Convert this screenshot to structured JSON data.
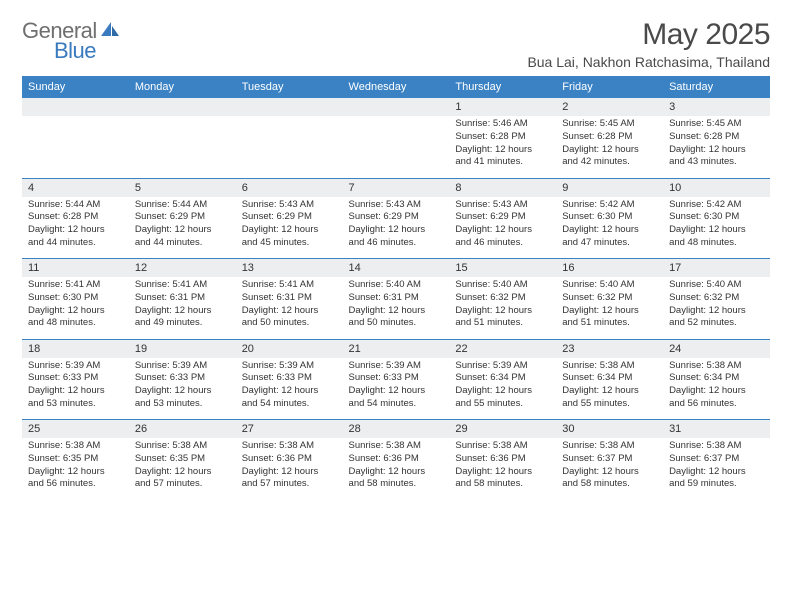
{
  "brand": {
    "part1": "General",
    "part2": "Blue"
  },
  "title": "May 2025",
  "location": "Bua Lai, Nakhon Ratchasima, Thailand",
  "colors": {
    "header_bg": "#3a82c4",
    "row_border": "#3a82c4",
    "daynum_bg": "#eceeef",
    "text": "#333333",
    "logo_gray": "#6f6f6f",
    "logo_blue": "#3a7bbf"
  },
  "weekdays": [
    "Sunday",
    "Monday",
    "Tuesday",
    "Wednesday",
    "Thursday",
    "Friday",
    "Saturday"
  ],
  "weeks": [
    [
      null,
      null,
      null,
      null,
      {
        "n": "1",
        "sr": "5:46 AM",
        "ss": "6:28 PM",
        "dl": "12 hours and 41 minutes."
      },
      {
        "n": "2",
        "sr": "5:45 AM",
        "ss": "6:28 PM",
        "dl": "12 hours and 42 minutes."
      },
      {
        "n": "3",
        "sr": "5:45 AM",
        "ss": "6:28 PM",
        "dl": "12 hours and 43 minutes."
      }
    ],
    [
      {
        "n": "4",
        "sr": "5:44 AM",
        "ss": "6:28 PM",
        "dl": "12 hours and 44 minutes."
      },
      {
        "n": "5",
        "sr": "5:44 AM",
        "ss": "6:29 PM",
        "dl": "12 hours and 44 minutes."
      },
      {
        "n": "6",
        "sr": "5:43 AM",
        "ss": "6:29 PM",
        "dl": "12 hours and 45 minutes."
      },
      {
        "n": "7",
        "sr": "5:43 AM",
        "ss": "6:29 PM",
        "dl": "12 hours and 46 minutes."
      },
      {
        "n": "8",
        "sr": "5:43 AM",
        "ss": "6:29 PM",
        "dl": "12 hours and 46 minutes."
      },
      {
        "n": "9",
        "sr": "5:42 AM",
        "ss": "6:30 PM",
        "dl": "12 hours and 47 minutes."
      },
      {
        "n": "10",
        "sr": "5:42 AM",
        "ss": "6:30 PM",
        "dl": "12 hours and 48 minutes."
      }
    ],
    [
      {
        "n": "11",
        "sr": "5:41 AM",
        "ss": "6:30 PM",
        "dl": "12 hours and 48 minutes."
      },
      {
        "n": "12",
        "sr": "5:41 AM",
        "ss": "6:31 PM",
        "dl": "12 hours and 49 minutes."
      },
      {
        "n": "13",
        "sr": "5:41 AM",
        "ss": "6:31 PM",
        "dl": "12 hours and 50 minutes."
      },
      {
        "n": "14",
        "sr": "5:40 AM",
        "ss": "6:31 PM",
        "dl": "12 hours and 50 minutes."
      },
      {
        "n": "15",
        "sr": "5:40 AM",
        "ss": "6:32 PM",
        "dl": "12 hours and 51 minutes."
      },
      {
        "n": "16",
        "sr": "5:40 AM",
        "ss": "6:32 PM",
        "dl": "12 hours and 51 minutes."
      },
      {
        "n": "17",
        "sr": "5:40 AM",
        "ss": "6:32 PM",
        "dl": "12 hours and 52 minutes."
      }
    ],
    [
      {
        "n": "18",
        "sr": "5:39 AM",
        "ss": "6:33 PM",
        "dl": "12 hours and 53 minutes."
      },
      {
        "n": "19",
        "sr": "5:39 AM",
        "ss": "6:33 PM",
        "dl": "12 hours and 53 minutes."
      },
      {
        "n": "20",
        "sr": "5:39 AM",
        "ss": "6:33 PM",
        "dl": "12 hours and 54 minutes."
      },
      {
        "n": "21",
        "sr": "5:39 AM",
        "ss": "6:33 PM",
        "dl": "12 hours and 54 minutes."
      },
      {
        "n": "22",
        "sr": "5:39 AM",
        "ss": "6:34 PM",
        "dl": "12 hours and 55 minutes."
      },
      {
        "n": "23",
        "sr": "5:38 AM",
        "ss": "6:34 PM",
        "dl": "12 hours and 55 minutes."
      },
      {
        "n": "24",
        "sr": "5:38 AM",
        "ss": "6:34 PM",
        "dl": "12 hours and 56 minutes."
      }
    ],
    [
      {
        "n": "25",
        "sr": "5:38 AM",
        "ss": "6:35 PM",
        "dl": "12 hours and 56 minutes."
      },
      {
        "n": "26",
        "sr": "5:38 AM",
        "ss": "6:35 PM",
        "dl": "12 hours and 57 minutes."
      },
      {
        "n": "27",
        "sr": "5:38 AM",
        "ss": "6:36 PM",
        "dl": "12 hours and 57 minutes."
      },
      {
        "n": "28",
        "sr": "5:38 AM",
        "ss": "6:36 PM",
        "dl": "12 hours and 58 minutes."
      },
      {
        "n": "29",
        "sr": "5:38 AM",
        "ss": "6:36 PM",
        "dl": "12 hours and 58 minutes."
      },
      {
        "n": "30",
        "sr": "5:38 AM",
        "ss": "6:37 PM",
        "dl": "12 hours and 58 minutes."
      },
      {
        "n": "31",
        "sr": "5:38 AM",
        "ss": "6:37 PM",
        "dl": "12 hours and 59 minutes."
      }
    ]
  ],
  "labels": {
    "sunrise": "Sunrise:",
    "sunset": "Sunset:",
    "daylight": "Daylight:"
  }
}
